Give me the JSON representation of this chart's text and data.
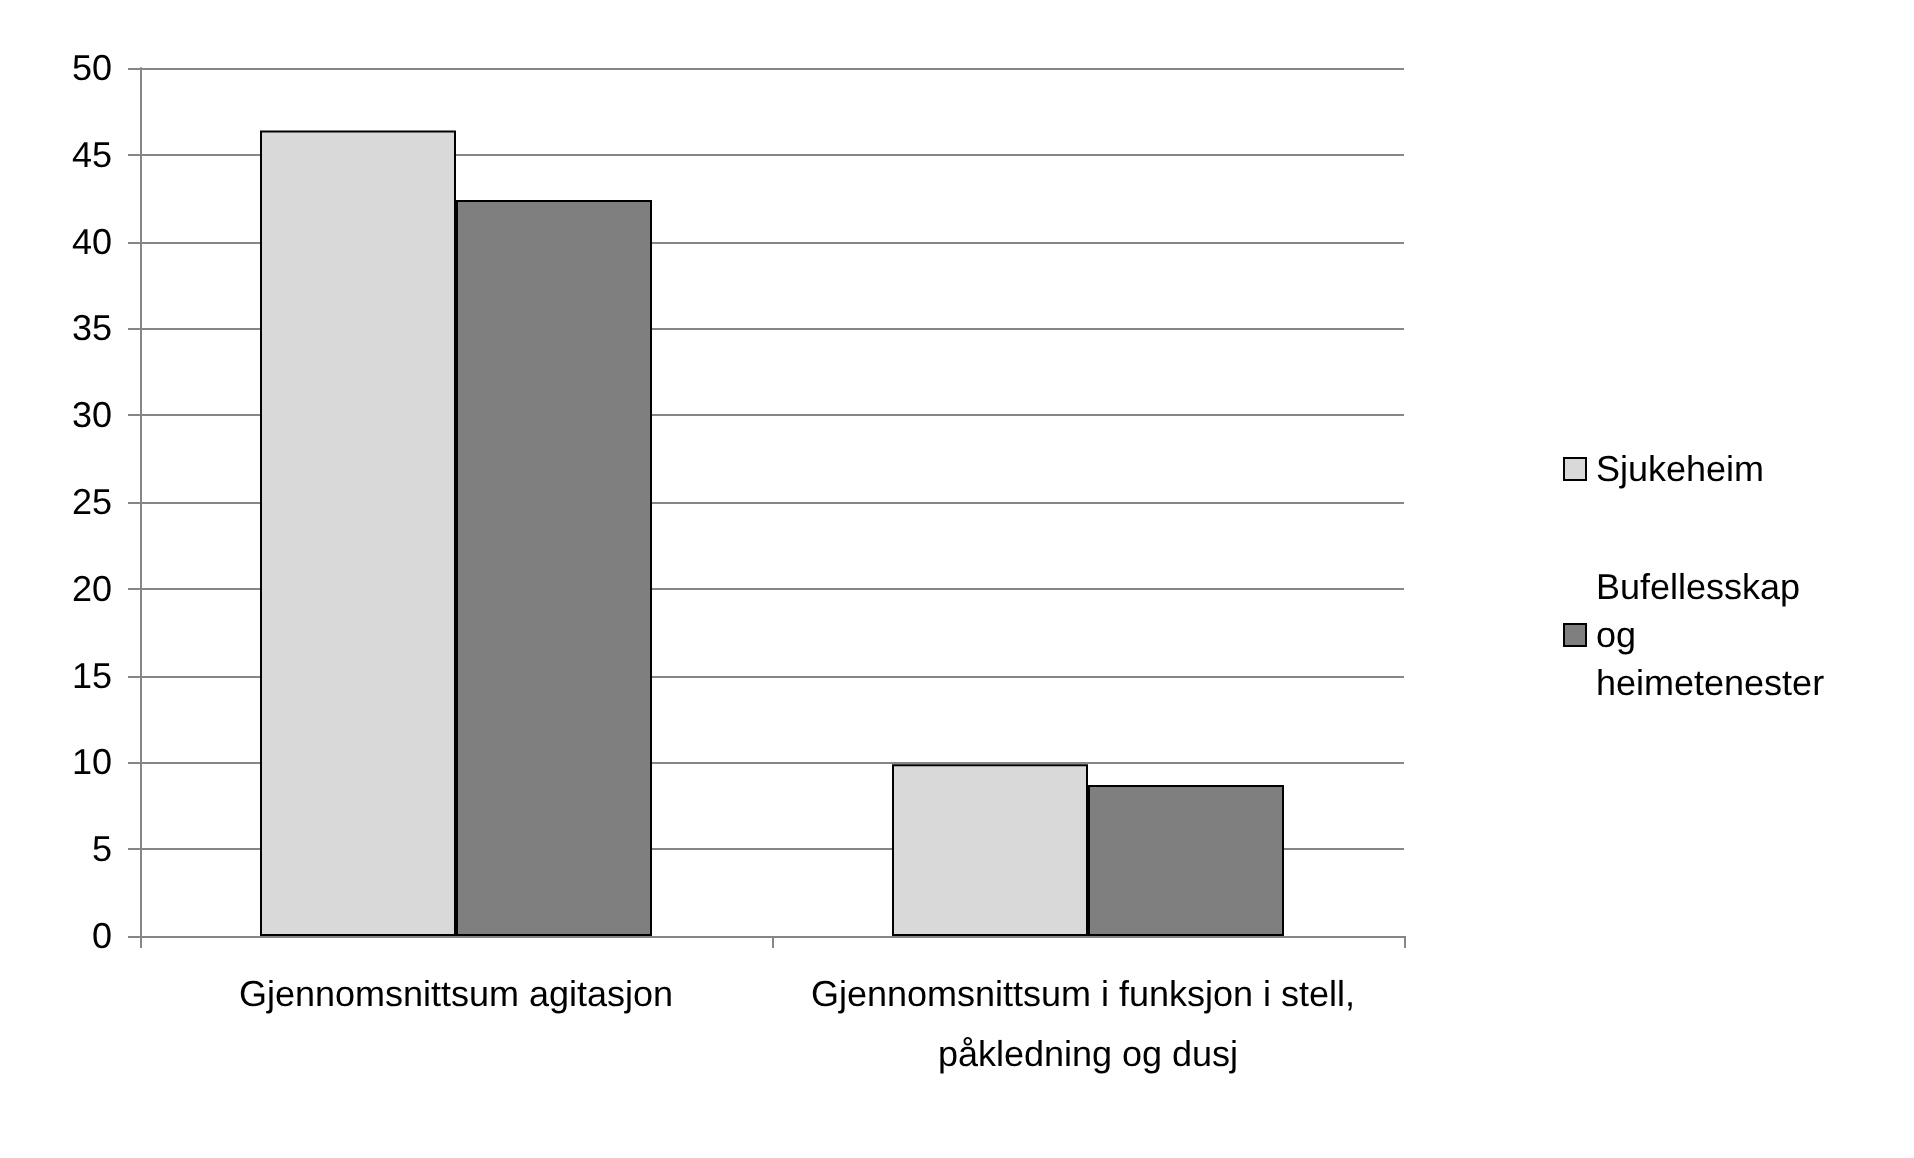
{
  "chart_data": {
    "type": "bar",
    "categories": [
      "Gjennomsnittsum agitasjon",
      "Gjennomsnittsum i funksjon i stell, påkledning og dusj"
    ],
    "series": [
      {
        "name": "Sjukeheim",
        "color": "#d9d9d9",
        "values": [
          46.4,
          9.9
        ]
      },
      {
        "name": "Bufellesskap og heimetenester",
        "color": "#7f7f7f",
        "values": [
          42.4,
          8.7
        ]
      }
    ],
    "ylim": [
      0,
      50
    ],
    "yticks": [
      0,
      5,
      10,
      15,
      20,
      25,
      30,
      35,
      40,
      45,
      50
    ],
    "grid": "y",
    "legend": "right"
  }
}
